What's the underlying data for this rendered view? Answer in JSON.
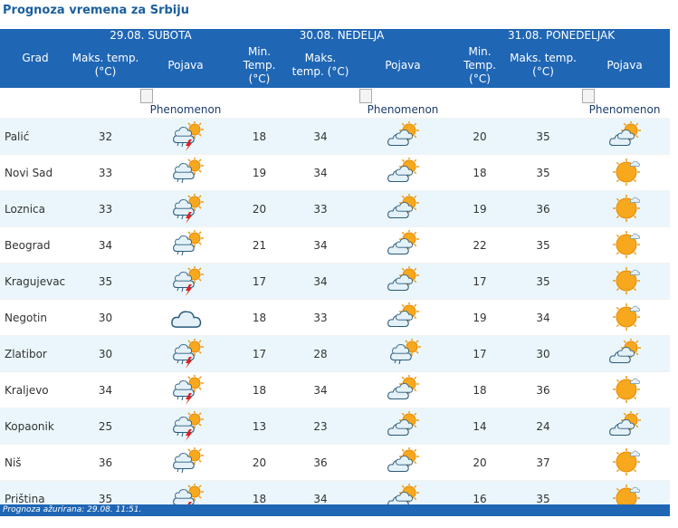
{
  "title": "Prognoza vremena za Srbiju",
  "header": {
    "first_column": "Grad",
    "days": [
      "29.08. SUBOTA",
      "30.08. NEDELJA",
      "31.08. PONEDELJAK"
    ],
    "columns": [
      "Maks. temp. (°C)",
      "Pojava",
      "Min. Temp. (°C)",
      "Maks. temp. (°C)",
      "Pojava",
      "Min. Temp. (°C)",
      "Maks. temp. (°C)",
      "Pojava"
    ],
    "image_alts": [
      "Phenomenon",
      "Phenomenon",
      "Phenomenon"
    ]
  },
  "table": {
    "rows": [
      [
        "Palić",
        32,
        18,
        34,
        20,
        35
      ],
      [
        "Novi Sad",
        33,
        19,
        34,
        18,
        35
      ],
      [
        "Loznica",
        33,
        20,
        33,
        19,
        36
      ],
      [
        "Beograd",
        34,
        21,
        34,
        22,
        35
      ],
      [
        "Kragujevac",
        35,
        17,
        34,
        17,
        35
      ],
      [
        "Negotin",
        30,
        18,
        33,
        19,
        34
      ],
      [
        "Zlatibor",
        30,
        17,
        28,
        17,
        30
      ],
      [
        "Kraljevo",
        34,
        18,
        34,
        18,
        36
      ],
      [
        "Kopaonik",
        25,
        13,
        23,
        14,
        24
      ],
      [
        "Niš",
        36,
        20,
        36,
        20,
        37
      ],
      [
        "Priština",
        35,
        18,
        34,
        16,
        35
      ]
    ]
  },
  "footer": "Prognoza ažurirana:  29.08. 11:51."
}
